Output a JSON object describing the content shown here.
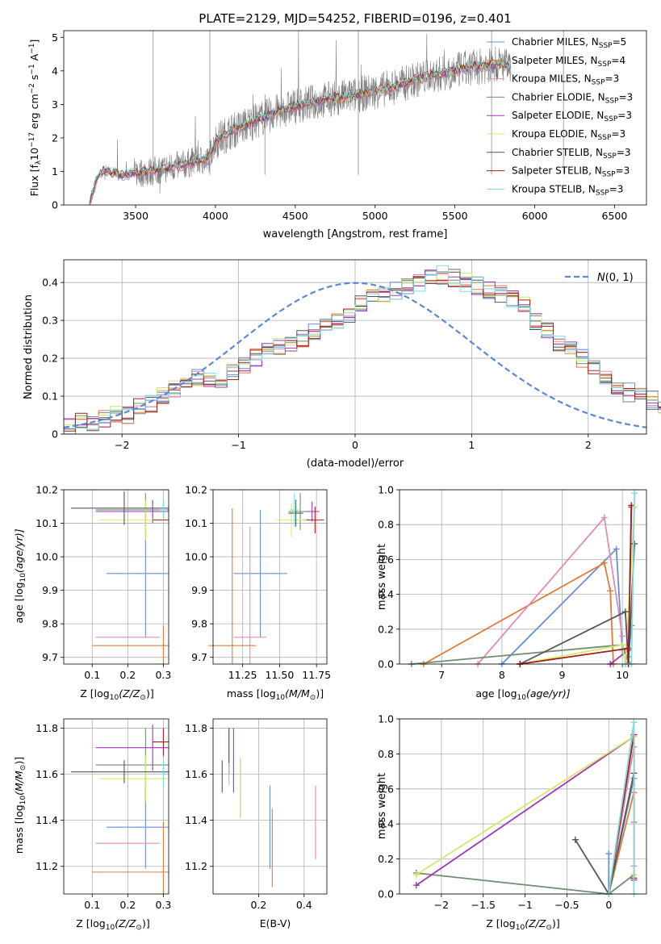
{
  "colors": [
    "#6a8fd8",
    "#e07b39",
    "#e08cb8",
    "#6e8f6e",
    "#a334b8",
    "#d4e86a",
    "#555555",
    "#a51c1c",
    "#7fdcdc"
  ],
  "chart_data": [
    {
      "id": "spectrum",
      "type": "line",
      "title": "PLATE=2129, MJD=54252, FIBERID=0196, z=0.401",
      "xlabel": "wavelength [Angstrom, rest frame]",
      "ylabel": "Flux [f$_\\lambda$10$^{-17}$ erg cm$^{-2}$ s$^{-1}$ A$^{-1}$]",
      "ylabel_main": "Flux [f",
      "ylabel_sub1": "λ",
      "ylabel_mid1": "10",
      "ylabel_sup1": "−17",
      "ylabel_mid2": " erg cm",
      "ylabel_sup2": "−2",
      "ylabel_mid3": " s",
      "ylabel_sup3": "−1",
      "ylabel_mid4": " A",
      "ylabel_sup4": "−1",
      "ylabel_end": "]",
      "xlim": [
        3050,
        6700
      ],
      "ylim": [
        0,
        5.2
      ],
      "xticks": [
        3500,
        4000,
        4500,
        5000,
        5500,
        6000,
        6500
      ],
      "yticks": [
        0,
        1,
        2,
        3,
        4,
        5
      ],
      "grid": false,
      "legend_position": "top-right",
      "x": [
        3210,
        3260,
        3300,
        3400,
        3500,
        3600,
        3700,
        3800,
        3900,
        3950,
        4000,
        4100,
        4200,
        4300,
        4400,
        4500,
        4600,
        4700,
        4800,
        4900,
        5000,
        5100,
        5200,
        5300,
        5400,
        5500,
        5600,
        5700,
        5800,
        5850
      ],
      "model_flux": [
        0,
        0.85,
        1.05,
        0.9,
        0.95,
        1.0,
        1.1,
        1.2,
        1.35,
        1.3,
        1.9,
        2.2,
        2.4,
        2.6,
        2.8,
        2.95,
        3.05,
        3.15,
        3.2,
        3.3,
        3.4,
        3.5,
        3.65,
        3.8,
        3.9,
        4.0,
        4.1,
        4.15,
        4.2,
        4.05
      ],
      "series": [
        {
          "name": "Chabrier MILES",
          "nssp": "5"
        },
        {
          "name": "Salpeter MILES",
          "nssp": "4"
        },
        {
          "name": "Kroupa MILES",
          "nssp": "3"
        },
        {
          "name": "Chabrier ELODIE",
          "nssp": "3"
        },
        {
          "name": "Salpeter ELODIE",
          "nssp": "3"
        },
        {
          "name": "Kroupa ELODIE",
          "nssp": "3"
        },
        {
          "name": "Chabrier STELIB",
          "nssp": "3"
        },
        {
          "name": "Salpeter STELIB",
          "nssp": "3"
        },
        {
          "name": "Kroupa STELIB",
          "nssp": "3"
        }
      ]
    },
    {
      "id": "residuals",
      "type": "line",
      "xlabel": "(data-model)/error",
      "ylabel": "Normed distribution",
      "xlim": [
        -2.5,
        2.5
      ],
      "ylim": [
        0,
        0.46
      ],
      "xticks": [
        -2,
        -1,
        0,
        1,
        2
      ],
      "yticks": [
        0.0,
        0.1,
        0.2,
        0.3,
        0.4
      ],
      "grid": true,
      "legend_position": "top-right",
      "legend_label_main": "N",
      "legend_label_args": "(0, 1)",
      "bin_width": 0.1,
      "bin_start": -2.5,
      "hist_base": [
        0.02,
        0.03,
        0.03,
        0.04,
        0.05,
        0.05,
        0.07,
        0.08,
        0.1,
        0.12,
        0.13,
        0.15,
        0.14,
        0.13,
        0.16,
        0.18,
        0.2,
        0.22,
        0.23,
        0.24,
        0.25,
        0.27,
        0.29,
        0.3,
        0.32,
        0.34,
        0.36,
        0.37,
        0.38,
        0.39,
        0.4,
        0.41,
        0.42,
        0.41,
        0.4,
        0.39,
        0.38,
        0.37,
        0.36,
        0.34,
        0.3,
        0.27,
        0.24,
        0.22,
        0.2,
        0.18,
        0.15,
        0.13,
        0.11,
        0.1,
        0.09,
        0.08,
        0.07,
        0.06,
        0.05,
        0.04,
        0.04,
        0.03,
        0.03,
        0.03
      ]
    },
    {
      "id": "z-age",
      "type": "scatter",
      "xlabel": "Z [log",
      "xlabel_sub": "10",
      "xlabel_rest": "(Z/Z",
      "xlabel_sun": "⊙",
      "xlabel_end": ")]",
      "ylabel": "age  [log",
      "ylabel_sub": "10",
      "ylabel_rest": "(age/yr)]",
      "xlim": [
        0.02,
        0.315
      ],
      "ylim": [
        9.68,
        10.2
      ],
      "xticks": [
        0.1,
        0.2,
        0.3
      ],
      "yticks": [
        9.7,
        9.8,
        9.9,
        10.0,
        10.1,
        10.2
      ],
      "tick_decimals": 1,
      "grid": true,
      "points": [
        {
          "x": 0.25,
          "y": 9.95,
          "xerr": 0.11,
          "yerr": 0.19
        },
        {
          "x": 0.3,
          "y": 9.735,
          "xerr": 0.2,
          "yerr": 0.06
        },
        {
          "x": 0.2,
          "y": 9.76,
          "xerr": 0.09,
          "yerr": 0.0
        },
        {
          "x": 0.25,
          "y": 10.14,
          "xerr": 0.14,
          "yerr": 0.05
        },
        {
          "x": 0.27,
          "y": 10.135,
          "xerr": 0.16,
          "yerr": 0.035
        },
        {
          "x": 0.25,
          "y": 10.11,
          "xerr": 0.13,
          "yerr": 0.06
        },
        {
          "x": 0.19,
          "y": 10.145,
          "xerr": 0.15,
          "yerr": 0.05
        },
        {
          "x": 0.3,
          "y": 10.11,
          "xerr": 0.03,
          "yerr": 0.0
        },
        {
          "x": 0.3,
          "y": 10.14,
          "xerr": 0.01,
          "yerr": 0.03
        }
      ]
    },
    {
      "id": "mass-age",
      "type": "scatter",
      "xlabel": "mass [log",
      "xlabel_sub": "10",
      "xlabel_rest": "(M/M",
      "xlabel_sun": "⊙",
      "xlabel_end": ")]",
      "xlim": [
        11.05,
        11.82
      ],
      "ylim": [
        9.68,
        10.2
      ],
      "xticks": [
        11.25,
        11.5,
        11.75
      ],
      "yticks": [
        9.7,
        9.8,
        9.9,
        10.0,
        10.1,
        10.2
      ],
      "tick_decimals": 1,
      "xtick_decimals": 2,
      "grid": true,
      "points": [
        {
          "x": 11.37,
          "y": 9.95,
          "xerr": 0.18,
          "yerr": 0.19
        },
        {
          "x": 11.18,
          "y": 9.735,
          "xerr": 0.16,
          "yerr": 0.41
        },
        {
          "x": 11.3,
          "y": 9.76,
          "xerr": 0.11,
          "yerr": 0.33
        },
        {
          "x": 11.64,
          "y": 10.135,
          "xerr": 0.08,
          "yerr": 0.055
        },
        {
          "x": 11.72,
          "y": 10.135,
          "xerr": 0.05,
          "yerr": 0.03
        },
        {
          "x": 11.58,
          "y": 10.11,
          "xerr": 0.1,
          "yerr": 0.05
        },
        {
          "x": 11.61,
          "y": 10.13,
          "xerr": 0.05,
          "yerr": 0.04
        },
        {
          "x": 11.74,
          "y": 10.11,
          "xerr": 0.06,
          "yerr": 0.04
        },
        {
          "x": 11.6,
          "y": 10.14,
          "xerr": 0.03,
          "yerr": 0.05
        }
      ]
    },
    {
      "id": "age-weight",
      "type": "line",
      "xlabel": "age  [log",
      "xlabel_sub": "10",
      "xlabel_rest": "(age/yr)]",
      "ylabel": "mass weight",
      "xlim": [
        6.3,
        10.4
      ],
      "ylim": [
        0,
        1.0
      ],
      "xticks": [
        7,
        8,
        9,
        10
      ],
      "yticks": [
        0.0,
        0.2,
        0.4,
        0.6,
        0.8,
        1.0
      ],
      "tick_decimals": 1,
      "grid": true,
      "series": [
        {
          "x": [
            8.0,
            9.9,
            10.0,
            10.1,
            10.15
          ],
          "y": [
            0.0,
            0.66,
            0.08,
            0.04,
            0.22
          ]
        },
        {
          "x": [
            6.7,
            9.7,
            9.8,
            9.85
          ],
          "y": [
            0.0,
            0.58,
            0.42,
            0.0
          ]
        },
        {
          "x": [
            7.6,
            9.7,
            10.0
          ],
          "y": [
            0.0,
            0.84,
            0.16
          ]
        },
        {
          "x": [
            6.5,
            10.0,
            10.1
          ],
          "y": [
            0.0,
            0.11,
            0.01
          ]
        },
        {
          "x": [
            9.8,
            10.1,
            10.15
          ],
          "y": [
            0.0,
            0.08,
            0.9
          ]
        },
        {
          "x": [
            8.3,
            10.0,
            10.05,
            10.2
          ],
          "y": [
            0.0,
            0.11,
            0.0,
            0.9
          ]
        },
        {
          "x": [
            8.3,
            10.05,
            10.1,
            10.2
          ],
          "y": [
            0.0,
            0.3,
            0.0,
            0.69
          ]
        },
        {
          "x": [
            8.3,
            10.1,
            10.1,
            10.15
          ],
          "y": [
            0.0,
            0.09,
            0.0,
            0.91
          ]
        },
        {
          "x": [
            10.05,
            10.15,
            10.2
          ],
          "y": [
            0.0,
            0.0,
            0.98
          ]
        }
      ]
    },
    {
      "id": "z-mass",
      "type": "scatter",
      "xlabel": "Z [log",
      "xlabel_sub": "10",
      "xlabel_rest": "(Z/Z",
      "xlabel_sun": "⊙",
      "xlabel_end": ")]",
      "ylabel": "mass [log",
      "ylabel_sub": "10",
      "ylabel_rest": "(M/M",
      "ylabel_sun": "⊙",
      "ylabel_end": ")]",
      "xlim": [
        0.02,
        0.315
      ],
      "ylim": [
        11.08,
        11.84
      ],
      "xticks": [
        0.1,
        0.2,
        0.3
      ],
      "yticks": [
        11.2,
        11.4,
        11.6,
        11.8
      ],
      "tick_decimals": 1,
      "grid": true,
      "points": [
        {
          "x": 0.25,
          "y": 11.37,
          "xerr": 0.11,
          "yerr": 0.18
        },
        {
          "x": 0.3,
          "y": 11.175,
          "xerr": 0.2,
          "yerr": 0.22
        },
        {
          "x": 0.2,
          "y": 11.3,
          "xerr": 0.09,
          "yerr": 0.0
        },
        {
          "x": 0.25,
          "y": 11.64,
          "xerr": 0.14,
          "yerr": 0.16
        },
        {
          "x": 0.27,
          "y": 11.715,
          "xerr": 0.16,
          "yerr": 0.1
        },
        {
          "x": 0.25,
          "y": 11.58,
          "xerr": 0.13,
          "yerr": 0.1
        },
        {
          "x": 0.19,
          "y": 11.61,
          "xerr": 0.15,
          "yerr": 0.05
        },
        {
          "x": 0.3,
          "y": 11.74,
          "xerr": 0.03,
          "yerr": 0.06
        },
        {
          "x": 0.3,
          "y": 11.6,
          "xerr": 0.01,
          "yerr": 0.06
        }
      ]
    },
    {
      "id": "ebv-mass",
      "type": "scatter",
      "xlabel": "E(B-V)",
      "xlim": [
        0.0,
        0.5
      ],
      "ylim": [
        11.08,
        11.84
      ],
      "xticks": [
        0.2,
        0.4
      ],
      "yticks": [
        11.2,
        11.4,
        11.6,
        11.8
      ],
      "tick_decimals": 1,
      "grid": true,
      "points": [
        {
          "x": 0.25,
          "y": 11.37,
          "xerr": 0,
          "yerr": 0.18
        },
        {
          "x": 0.26,
          "y": 11.28,
          "xerr": 0,
          "yerr": 0.17
        },
        {
          "x": 0.45,
          "y": 11.39,
          "xerr": 0,
          "yerr": 0.16
        },
        {
          "x": 0.12,
          "y": 11.54,
          "xerr": 0,
          "yerr": 0.13
        },
        {
          "x": 0.09,
          "y": 11.66,
          "xerr": 0,
          "yerr": 0.14
        },
        {
          "x": 0.12,
          "y": 11.54,
          "xerr": 0,
          "yerr": 0.13
        },
        {
          "x": 0.04,
          "y": 11.59,
          "xerr": 0,
          "yerr": 0.07
        },
        {
          "x": 0.07,
          "y": 11.7,
          "xerr": 0,
          "yerr": 0.1
        },
        {
          "x": 0.07,
          "y": 11.6,
          "xerr": 0,
          "yerr": 0.05
        }
      ]
    },
    {
      "id": "z-weight",
      "type": "line",
      "xlabel": "Z [log",
      "xlabel_sub": "10",
      "xlabel_rest": "(Z/Z",
      "xlabel_sun": "⊙",
      "xlabel_end": ")]",
      "ylabel": "mass weight",
      "xlim": [
        -2.5,
        0.45
      ],
      "ylim": [
        0,
        1.0
      ],
      "xticks": [
        -2.0,
        -1.5,
        -1.0,
        -0.5,
        0.0
      ],
      "yticks": [
        0.0,
        0.2,
        0.4,
        0.6,
        0.8,
        1.0
      ],
      "tick_decimals": 1,
      "grid": true,
      "series": [
        {
          "x": [
            0.0,
            0.0,
            0.3
          ],
          "y": [
            0.23,
            0.0,
            0.66
          ]
        },
        {
          "x": [
            0.0,
            0.3,
            0.3
          ],
          "y": [
            0.0,
            0.58,
            0.41
          ]
        },
        {
          "x": [
            0.0,
            0.3,
            0.3
          ],
          "y": [
            0.0,
            0.84,
            0.16
          ]
        },
        {
          "x": [
            -2.3,
            0.0,
            0.3
          ],
          "y": [
            0.12,
            0.0,
            0.11
          ]
        },
        {
          "x": [
            -2.3,
            0.3,
            0.3
          ],
          "y": [
            0.05,
            0.9,
            0.08
          ]
        },
        {
          "x": [
            -2.3,
            0.3,
            0.3
          ],
          "y": [
            0.11,
            0.9,
            0.11
          ]
        },
        {
          "x": [
            -0.4,
            0.0,
            0.3
          ],
          "y": [
            0.31,
            0.0,
            0.69
          ]
        },
        {
          "x": [
            0.0,
            0.3,
            0.3
          ],
          "y": [
            0.0,
            0.91,
            0.09
          ]
        },
        {
          "x": [
            0.0,
            0.3,
            0.3
          ],
          "y": [
            0.0,
            0.98,
            0.0
          ]
        }
      ]
    }
  ]
}
